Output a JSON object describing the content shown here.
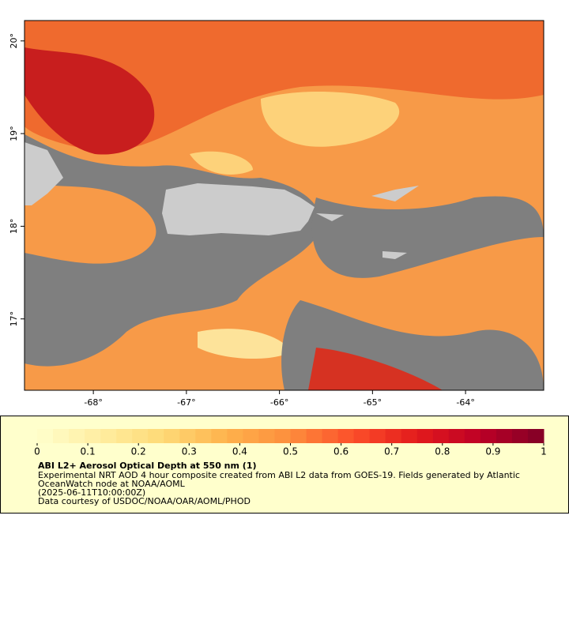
{
  "chart_data": {
    "type": "map",
    "xlim": [
      -68.74,
      -63.16
    ],
    "ylim": [
      16.23,
      20.22
    ],
    "xticks": [
      {
        "value": -68,
        "label": "-68°"
      },
      {
        "value": -67,
        "label": "-67°"
      },
      {
        "value": -66,
        "label": "-66°"
      },
      {
        "value": -65,
        "label": "-65°"
      },
      {
        "value": -64,
        "label": "-64°"
      }
    ],
    "yticks": [
      {
        "value": 17,
        "label": "17°"
      },
      {
        "value": 18,
        "label": "18°"
      },
      {
        "value": 19,
        "label": "19°"
      },
      {
        "value": 20,
        "label": "20°"
      }
    ],
    "colorbar": {
      "lim": [
        0,
        1
      ],
      "ticks": [
        0,
        0.1,
        0.2,
        0.3,
        0.4,
        0.5,
        0.6,
        0.7,
        0.8,
        0.9,
        1
      ],
      "colors": [
        "#ffffcc",
        "#ffeda0",
        "#fed976",
        "#feb24c",
        "#fd8d3c",
        "#fc4e2a",
        "#e31a1c",
        "#bd0026",
        "#800026"
      ]
    },
    "title": "ABI L2+ Aerosol Optical Depth at 550 nm (1)",
    "notes": [
      "Experimental NRT AOD 4 hour composite created from ABI L2 data from GOES-19. Fields generated by Atlantic",
      "OceanWatch node at NOAA/AOML",
      "(2025-06-11T10:00:00Z)",
      "Data courtesy of USDOC/NOAA/OAR/AOML/PHOD"
    ]
  }
}
